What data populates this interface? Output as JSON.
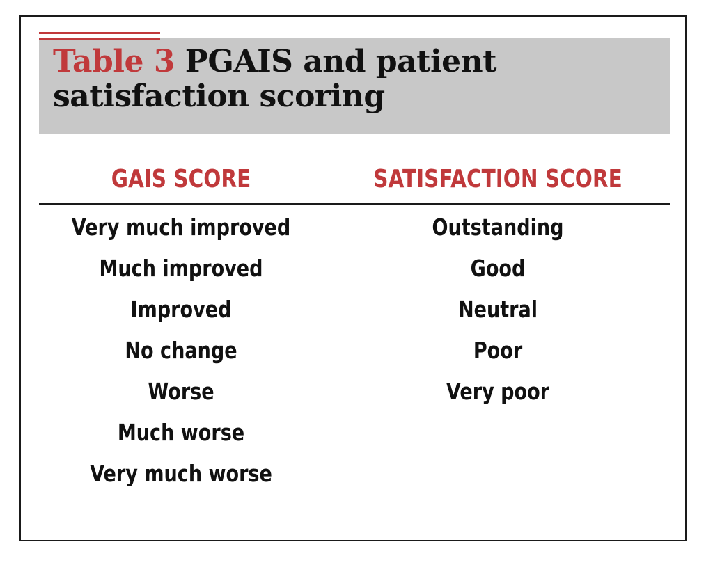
{
  "table": {
    "label": "Table 3",
    "title": "PGAIS and patient satisfaction scoring",
    "headers": {
      "gais": "GAIS SCORE",
      "satisfaction": "SATISFACTION SCORE"
    },
    "gais_scores": [
      "Very much improved",
      "Much improved",
      "Improved",
      "No change",
      "Worse",
      "Much worse",
      "Very much worse"
    ],
    "satisfaction_scores": [
      "Outstanding",
      "Good",
      "Neutral",
      "Poor",
      "Very poor"
    ]
  },
  "colors": {
    "accent": "#c0393b",
    "title_band": "#c8c8c8",
    "text": "#111111"
  }
}
